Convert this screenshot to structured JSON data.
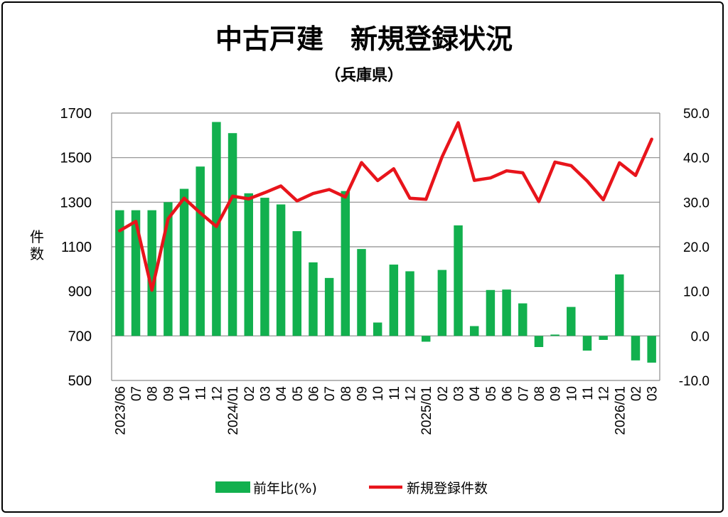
{
  "chart_data": {
    "type": "bar",
    "title": "中古戸建　新規登録状況",
    "subtitle": "（兵庫県）",
    "ylabel_left": "件数",
    "categories": [
      "2023/06",
      "07",
      "08",
      "09",
      "10",
      "11",
      "12",
      "2024/01",
      "02",
      "03",
      "04",
      "05",
      "06",
      "07",
      "08",
      "09",
      "10",
      "11",
      "12",
      "2025/01",
      "02",
      "03",
      "04",
      "05",
      "06",
      "07",
      "08",
      "09",
      "10",
      "11",
      "12",
      "2026/01",
      "02",
      "03"
    ],
    "left_axis": {
      "min": 500,
      "max": 1700,
      "ticks": [
        "1700",
        "1500",
        "1300",
        "1100",
        "900",
        "700",
        "500"
      ]
    },
    "right_axis": {
      "min": -10,
      "max": 50,
      "ticks": [
        "50.0",
        "40.0",
        "30.0",
        "20.0",
        "10.0",
        "0.0",
        "-10.0"
      ],
      "negative_color": "#d9261c"
    },
    "series": [
      {
        "name": "前年比(%)",
        "kind": "bar",
        "axis": "right",
        "color": "#12b04e",
        "values": [
          28.2,
          28.2,
          28.2,
          30.0,
          33.0,
          38.0,
          48.0,
          45.5,
          32.0,
          31.0,
          29.5,
          23.5,
          16.5,
          13.0,
          32.5,
          19.5,
          3.0,
          16.0,
          14.5,
          -1.3,
          14.8,
          24.8,
          2.2,
          10.3,
          10.4,
          7.3,
          -2.5,
          0.3,
          6.5,
          -3.3,
          -0.9,
          13.8,
          -5.5,
          -6.0
        ]
      },
      {
        "name": "新規登録件数",
        "kind": "line",
        "axis": "left",
        "color": "#e8141b",
        "values": [
          1172,
          1214,
          905,
          1225,
          1318,
          1252,
          1191,
          1327,
          1315,
          1343,
          1373,
          1306,
          1339,
          1357,
          1323,
          1478,
          1397,
          1450,
          1318,
          1313,
          1504,
          1657,
          1398,
          1409,
          1441,
          1432,
          1303,
          1480,
          1464,
          1395,
          1311,
          1477,
          1420,
          1583
        ]
      }
    ],
    "grid": true,
    "legend": "bottom"
  }
}
